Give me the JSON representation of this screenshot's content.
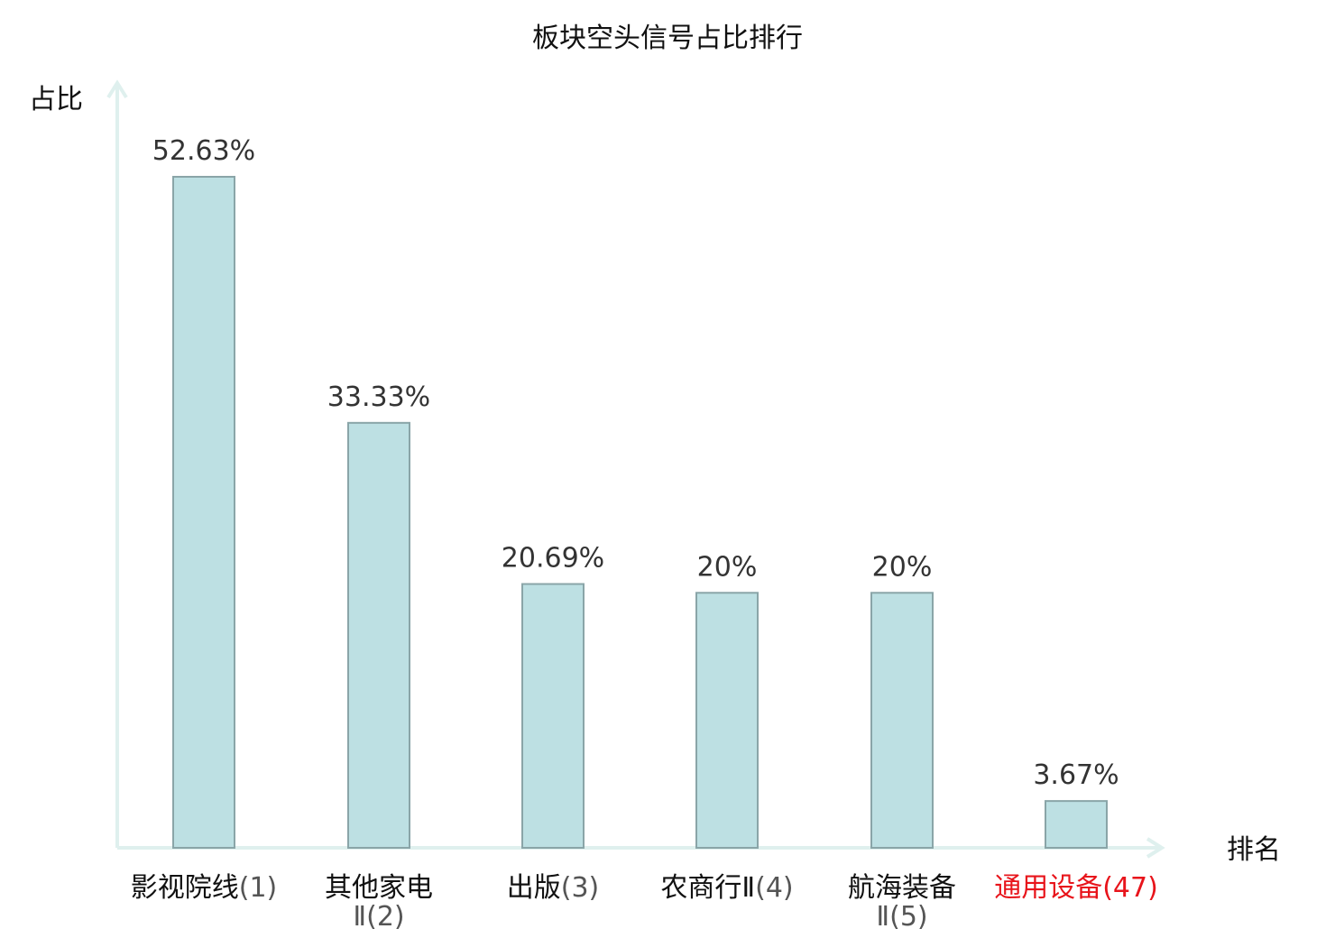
{
  "chart_data": {
    "type": "bar",
    "title": "板块空头信号占比排行",
    "ylabel": "占比",
    "xlabel": "排名",
    "ylim": [
      0,
      60
    ],
    "grid": false,
    "categories": [
      {
        "name": "影视院线",
        "rank": "(1)",
        "highlight": false
      },
      {
        "name": "其他家电",
        "name2": "Ⅱ",
        "rank": "(2)",
        "highlight": false
      },
      {
        "name": "出版",
        "rank": "(3)",
        "highlight": false
      },
      {
        "name": "农商行Ⅱ",
        "rank": "(4)",
        "highlight": false
      },
      {
        "name": "航海装备",
        "name2": "Ⅱ",
        "rank": "(5)",
        "highlight": false
      },
      {
        "name": "通用设备",
        "rank": "(47)",
        "highlight": true
      }
    ],
    "values": [
      52.63,
      33.33,
      20.69,
      20,
      20,
      3.67
    ],
    "value_labels": [
      "52.63%",
      "33.33%",
      "20.69%",
      "20%",
      "20%",
      "3.67%"
    ]
  },
  "colors": {
    "bar_fill": "#bde0e3",
    "bar_stroke": "#8aa5a8",
    "axis": "#dff0ee",
    "highlight": "#e8141b",
    "text": "#111111"
  }
}
